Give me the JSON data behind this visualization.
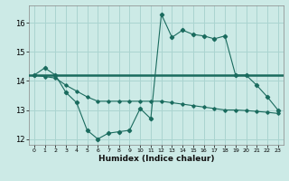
{
  "title": "",
  "xlabel": "Humidex (Indice chaleur)",
  "bg_color": "#cceae6",
  "line_color": "#1a6b5e",
  "grid_color": "#aad4d0",
  "x_main": [
    0,
    1,
    2,
    3,
    4,
    5,
    6,
    7,
    8,
    9,
    10,
    11,
    12,
    13,
    14,
    15,
    16,
    17,
    18,
    19,
    20,
    21,
    22,
    23
  ],
  "y_main": [
    14.2,
    14.45,
    14.2,
    13.6,
    13.25,
    12.3,
    12.0,
    12.2,
    12.25,
    12.3,
    13.05,
    12.7,
    16.3,
    15.5,
    15.75,
    15.6,
    15.55,
    15.45,
    15.55,
    14.2,
    14.2,
    13.85,
    13.45,
    13.0
  ],
  "x_smooth": [
    0,
    1,
    2,
    3,
    4,
    5,
    6,
    7,
    8,
    9,
    10,
    11,
    12,
    13,
    14,
    15,
    16,
    17,
    18,
    19,
    20,
    21,
    22,
    23
  ],
  "y_smooth": [
    14.2,
    14.15,
    14.1,
    13.85,
    13.65,
    13.45,
    13.3,
    13.3,
    13.3,
    13.3,
    13.3,
    13.3,
    13.3,
    13.25,
    13.2,
    13.15,
    13.1,
    13.05,
    13.0,
    13.0,
    12.98,
    12.95,
    12.92,
    12.88
  ],
  "hline_y": 14.2,
  "xlim": [
    -0.5,
    23.5
  ],
  "ylim": [
    11.8,
    16.6
  ],
  "yticks": [
    12,
    13,
    14,
    15,
    16
  ],
  "xticks": [
    0,
    1,
    2,
    3,
    4,
    5,
    6,
    7,
    8,
    9,
    10,
    11,
    12,
    13,
    14,
    15,
    16,
    17,
    18,
    19,
    20,
    21,
    22,
    23
  ],
  "xtick_labels": [
    "0",
    "1",
    "2",
    "3",
    "4",
    "5",
    "6",
    "7",
    "8",
    "9",
    "10",
    "11",
    "12",
    "13",
    "14",
    "15",
    "16",
    "17",
    "18",
    "19",
    "20",
    "21",
    "22",
    "23"
  ]
}
